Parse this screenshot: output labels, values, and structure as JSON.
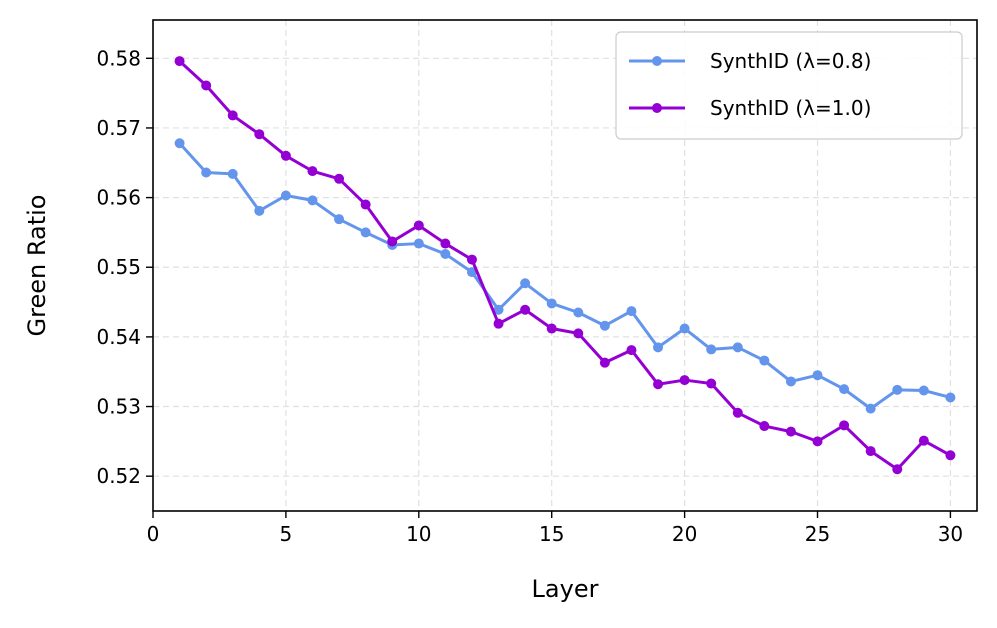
{
  "chart_data": {
    "type": "line",
    "title": "",
    "xlabel": "Layer",
    "ylabel": "Green Ratio",
    "xlim": [
      0,
      31
    ],
    "ylim": [
      0.515,
      0.5855
    ],
    "xticks": [
      "0",
      "5",
      "10",
      "15",
      "20",
      "25",
      "30"
    ],
    "yticks": [
      "0.52",
      "0.53",
      "0.54",
      "0.55",
      "0.56",
      "0.57",
      "0.58"
    ],
    "grid": true,
    "legend_position": "top-right",
    "x": [
      1,
      2,
      3,
      4,
      5,
      6,
      7,
      8,
      9,
      10,
      11,
      12,
      13,
      14,
      15,
      16,
      17,
      18,
      19,
      20,
      21,
      22,
      23,
      24,
      25,
      26,
      27,
      28,
      29,
      30
    ],
    "series": [
      {
        "name": "SynthID (λ=0.8)",
        "color": "#6495ED",
        "values": [
          0.5678,
          0.5636,
          0.5634,
          0.5581,
          0.5603,
          0.5596,
          0.5569,
          0.555,
          0.5532,
          0.5534,
          0.5519,
          0.5493,
          0.5439,
          0.5477,
          0.5448,
          0.5435,
          0.5416,
          0.5437,
          0.5385,
          0.5412,
          0.5382,
          0.5385,
          0.5366,
          0.5336,
          0.5345,
          0.5325,
          0.5297,
          0.5324,
          0.5323,
          0.5313
        ]
      },
      {
        "name": "SynthID (λ=1.0)",
        "color": "#9400D3",
        "values": [
          0.5796,
          0.5761,
          0.5718,
          0.5691,
          0.566,
          0.5638,
          0.5627,
          0.559,
          0.5537,
          0.556,
          0.5534,
          0.5511,
          0.5419,
          0.5439,
          0.5412,
          0.5405,
          0.5363,
          0.5381,
          0.5332,
          0.5338,
          0.5333,
          0.5291,
          0.5272,
          0.5264,
          0.525,
          0.5273,
          0.5236,
          0.521,
          0.5251,
          0.523
        ]
      }
    ]
  }
}
